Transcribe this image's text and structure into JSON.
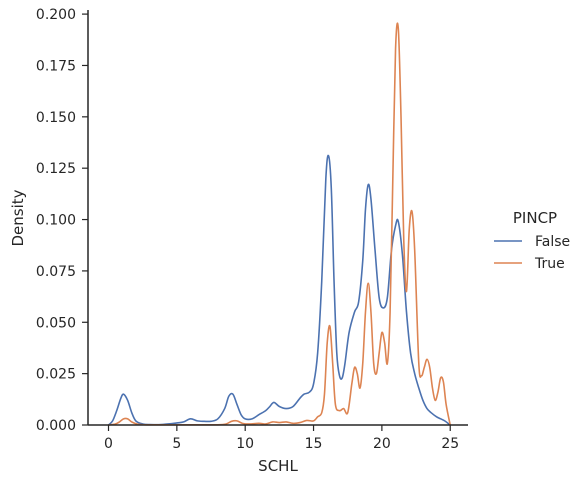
{
  "chart_data": {
    "type": "line",
    "xlabel": "SCHL",
    "ylabel": "Density",
    "xlim": [
      -1.5,
      26.3
    ],
    "ylim": [
      0,
      0.202
    ],
    "xticks": [
      0,
      5,
      10,
      15,
      20,
      25
    ],
    "yticks": [
      0.0,
      0.025,
      0.05,
      0.075,
      0.1,
      0.125,
      0.15,
      0.175,
      0.2
    ],
    "xtick_labels": [
      "0",
      "5",
      "10",
      "15",
      "20",
      "25"
    ],
    "ytick_labels": [
      "0.000",
      "0.025",
      "0.050",
      "0.075",
      "0.100",
      "0.125",
      "0.150",
      "0.175",
      "0.200"
    ],
    "grid": false,
    "legend": {
      "title": "PINCP",
      "placement": "right outside"
    },
    "series": [
      {
        "name": "False",
        "color": "#4c72b0",
        "x": [
          0,
          0.3,
          0.6,
          0.9,
          1.1,
          1.4,
          1.7,
          2.0,
          2.5,
          3,
          4,
          5,
          5.5,
          6,
          6.5,
          7,
          7.5,
          8,
          8.5,
          8.8,
          9.1,
          9.4,
          9.7,
          10,
          10.5,
          11,
          11.5,
          11.8,
          12.1,
          12.5,
          13,
          13.5,
          14,
          14.3,
          14.7,
          15,
          15.3,
          15.6,
          15.9,
          16.1,
          16.3,
          16.5,
          16.7,
          16.9,
          17.1,
          17.3,
          17.6,
          18.0,
          18.3,
          18.6,
          18.8,
          19.0,
          19.2,
          19.5,
          19.8,
          20.1,
          20.4,
          20.7,
          21.0,
          21.2,
          21.5,
          21.8,
          22.1,
          22.4,
          22.7,
          23.0,
          23.3,
          23.6,
          24.0,
          24.3,
          24.6,
          25.0
        ],
        "y": [
          0,
          0.002,
          0.007,
          0.013,
          0.015,
          0.012,
          0.006,
          0.002,
          0.0005,
          0.0002,
          0.0003,
          0.001,
          0.0015,
          0.003,
          0.002,
          0.0018,
          0.0018,
          0.003,
          0.008,
          0.014,
          0.015,
          0.01,
          0.005,
          0.003,
          0.003,
          0.005,
          0.007,
          0.009,
          0.011,
          0.009,
          0.008,
          0.009,
          0.013,
          0.015,
          0.016,
          0.02,
          0.035,
          0.07,
          0.12,
          0.131,
          0.115,
          0.07,
          0.035,
          0.024,
          0.023,
          0.03,
          0.045,
          0.055,
          0.06,
          0.08,
          0.105,
          0.117,
          0.11,
          0.085,
          0.062,
          0.057,
          0.062,
          0.085,
          0.097,
          0.099,
          0.083,
          0.055,
          0.035,
          0.025,
          0.018,
          0.012,
          0.008,
          0.006,
          0.004,
          0.003,
          0.002,
          0.0
        ]
      },
      {
        "name": "True",
        "color": "#dd8452",
        "x": [
          0,
          0.5,
          0.8,
          1.1,
          1.4,
          1.7,
          2.2,
          3,
          5,
          7,
          8,
          8.6,
          9.0,
          9.4,
          9.8,
          10.3,
          11,
          11.5,
          12,
          12.5,
          13,
          13.5,
          14,
          14.5,
          15,
          15.3,
          15.6,
          15.8,
          16.0,
          16.2,
          16.4,
          16.6,
          16.9,
          17.2,
          17.5,
          17.8,
          18.0,
          18.2,
          18.4,
          18.6,
          18.8,
          19.0,
          19.2,
          19.4,
          19.6,
          19.8,
          20.0,
          20.2,
          20.4,
          20.6,
          20.8,
          21.0,
          21.2,
          21.4,
          21.6,
          21.8,
          22.0,
          22.2,
          22.4,
          22.7,
          22.9,
          23.1,
          23.3,
          23.5,
          23.7,
          23.9,
          24.1,
          24.3,
          24.5,
          24.7,
          25.0
        ],
        "y": [
          0,
          0.0005,
          0.0015,
          0.003,
          0.003,
          0.0015,
          0.0003,
          0.0001,
          0.0001,
          0.0001,
          0.0001,
          0.0005,
          0.0018,
          0.002,
          0.0008,
          0.0005,
          0.0008,
          0.0005,
          0.0015,
          0.0012,
          0.0015,
          0.0008,
          0.0012,
          0.0022,
          0.002,
          0.004,
          0.006,
          0.015,
          0.04,
          0.048,
          0.03,
          0.01,
          0.007,
          0.008,
          0.006,
          0.02,
          0.028,
          0.025,
          0.018,
          0.03,
          0.055,
          0.069,
          0.055,
          0.03,
          0.025,
          0.035,
          0.045,
          0.04,
          0.03,
          0.055,
          0.12,
          0.183,
          0.193,
          0.15,
          0.09,
          0.065,
          0.095,
          0.104,
          0.085,
          0.03,
          0.024,
          0.028,
          0.032,
          0.028,
          0.018,
          0.012,
          0.016,
          0.023,
          0.021,
          0.01,
          0.0
        ]
      }
    ]
  }
}
